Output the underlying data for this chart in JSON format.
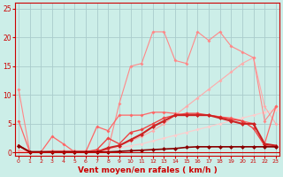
{
  "bg_color": "#cceee8",
  "grid_color": "#aacccc",
  "xlabel": "Vent moyen/en rafales ( km/h )",
  "xlabel_color": "#cc0000",
  "tick_color": "#cc0000",
  "x_ticks": [
    0,
    1,
    2,
    3,
    4,
    5,
    6,
    7,
    8,
    9,
    10,
    11,
    12,
    13,
    14,
    15,
    16,
    17,
    18,
    19,
    20,
    21,
    22,
    23
  ],
  "ylim": [
    -0.5,
    26
  ],
  "xlim": [
    -0.3,
    23.3
  ],
  "yticks": [
    0,
    5,
    10,
    15,
    20,
    25
  ],
  "series": [
    {
      "x": [
        0,
        1,
        2,
        3,
        4,
        5,
        6,
        7,
        8,
        9,
        10,
        11,
        12,
        13,
        14,
        15,
        16,
        17,
        18,
        19,
        20,
        21,
        22,
        23
      ],
      "y": [
        0.2,
        0.1,
        0.1,
        0.1,
        0.1,
        0.1,
        0.1,
        0.1,
        0.4,
        0.8,
        1.2,
        1.5,
        2.0,
        2.5,
        3.0,
        3.5,
        4.0,
        4.5,
        5.0,
        5.5,
        6.0,
        6.5,
        7.0,
        7.5
      ],
      "color": "#ffcccc",
      "lw": 0.8,
      "ms": 2.0
    },
    {
      "x": [
        0,
        1,
        2,
        3,
        4,
        5,
        6,
        7,
        8,
        9,
        10,
        11,
        12,
        13,
        14,
        15,
        16,
        17,
        18,
        19,
        20,
        21,
        22,
        23
      ],
      "y": [
        0.3,
        0.1,
        0.1,
        0.1,
        0.1,
        0.1,
        0.1,
        0.1,
        0.6,
        1.2,
        2.0,
        2.8,
        3.8,
        5.0,
        6.5,
        8.0,
        9.5,
        11.0,
        12.5,
        14.0,
        15.5,
        16.5,
        8.0,
        5.0
      ],
      "color": "#ffaaaa",
      "lw": 0.8,
      "ms": 2.0
    },
    {
      "x": [
        0,
        1,
        2,
        3,
        4,
        5,
        6,
        7,
        8,
        9,
        10,
        11,
        12,
        13,
        14,
        15,
        16,
        17,
        18,
        19,
        20,
        21,
        22,
        23
      ],
      "y": [
        11.0,
        0.1,
        0.1,
        0.3,
        0.3,
        0.3,
        0.3,
        0.3,
        0.5,
        8.5,
        15.0,
        15.5,
        21.0,
        21.0,
        16.0,
        15.5,
        21.0,
        19.5,
        21.0,
        18.5,
        17.5,
        16.5,
        5.5,
        8.0
      ],
      "color": "#ff8888",
      "lw": 0.8,
      "ms": 2.0
    },
    {
      "x": [
        0,
        1,
        2,
        3,
        4,
        5,
        6,
        7,
        8,
        9,
        10,
        11,
        12,
        13,
        14,
        15,
        16,
        17,
        18,
        19,
        20,
        21,
        22,
        23
      ],
      "y": [
        5.5,
        0.1,
        0.1,
        2.8,
        1.5,
        0.1,
        0.1,
        4.5,
        3.8,
        6.5,
        6.5,
        6.5,
        7.0,
        7.0,
        6.8,
        6.5,
        6.5,
        6.5,
        6.2,
        6.0,
        5.5,
        5.0,
        1.5,
        8.0
      ],
      "color": "#ff6666",
      "lw": 0.9,
      "ms": 2.0
    },
    {
      "x": [
        0,
        1,
        2,
        3,
        4,
        5,
        6,
        7,
        8,
        9,
        10,
        11,
        12,
        13,
        14,
        15,
        16,
        17,
        18,
        19,
        20,
        21,
        22,
        23
      ],
      "y": [
        1.2,
        0.1,
        0.1,
        0.1,
        0.1,
        0.1,
        0.1,
        0.5,
        2.5,
        1.5,
        3.5,
        4.0,
        5.0,
        6.0,
        6.5,
        6.8,
        6.8,
        6.5,
        6.2,
        5.8,
        5.5,
        4.2,
        1.2,
        1.0
      ],
      "color": "#ee4444",
      "lw": 1.0,
      "ms": 2.2
    },
    {
      "x": [
        0,
        1,
        2,
        3,
        4,
        5,
        6,
        7,
        8,
        9,
        10,
        11,
        12,
        13,
        14,
        15,
        16,
        17,
        18,
        19,
        20,
        21,
        22,
        23
      ],
      "y": [
        1.2,
        0.1,
        0.1,
        0.1,
        0.1,
        0.1,
        0.1,
        0.1,
        0.8,
        1.2,
        2.2,
        3.2,
        4.5,
        5.5,
        6.5,
        6.5,
        6.5,
        6.5,
        6.0,
        5.5,
        5.0,
        5.0,
        1.5,
        1.2
      ],
      "color": "#cc2222",
      "lw": 1.5,
      "ms": 2.5
    },
    {
      "x": [
        0,
        1,
        2,
        3,
        4,
        5,
        6,
        7,
        8,
        9,
        10,
        11,
        12,
        13,
        14,
        15,
        16,
        17,
        18,
        19,
        20,
        21,
        22,
        23
      ],
      "y": [
        1.2,
        0.1,
        0.1,
        0.1,
        0.1,
        0.1,
        0.1,
        0.1,
        0.1,
        0.2,
        0.3,
        0.4,
        0.5,
        0.6,
        0.7,
        0.9,
        1.0,
        1.0,
        1.0,
        1.0,
        1.0,
        1.0,
        1.0,
        1.0
      ],
      "color": "#880000",
      "lw": 1.2,
      "ms": 2.5
    }
  ]
}
